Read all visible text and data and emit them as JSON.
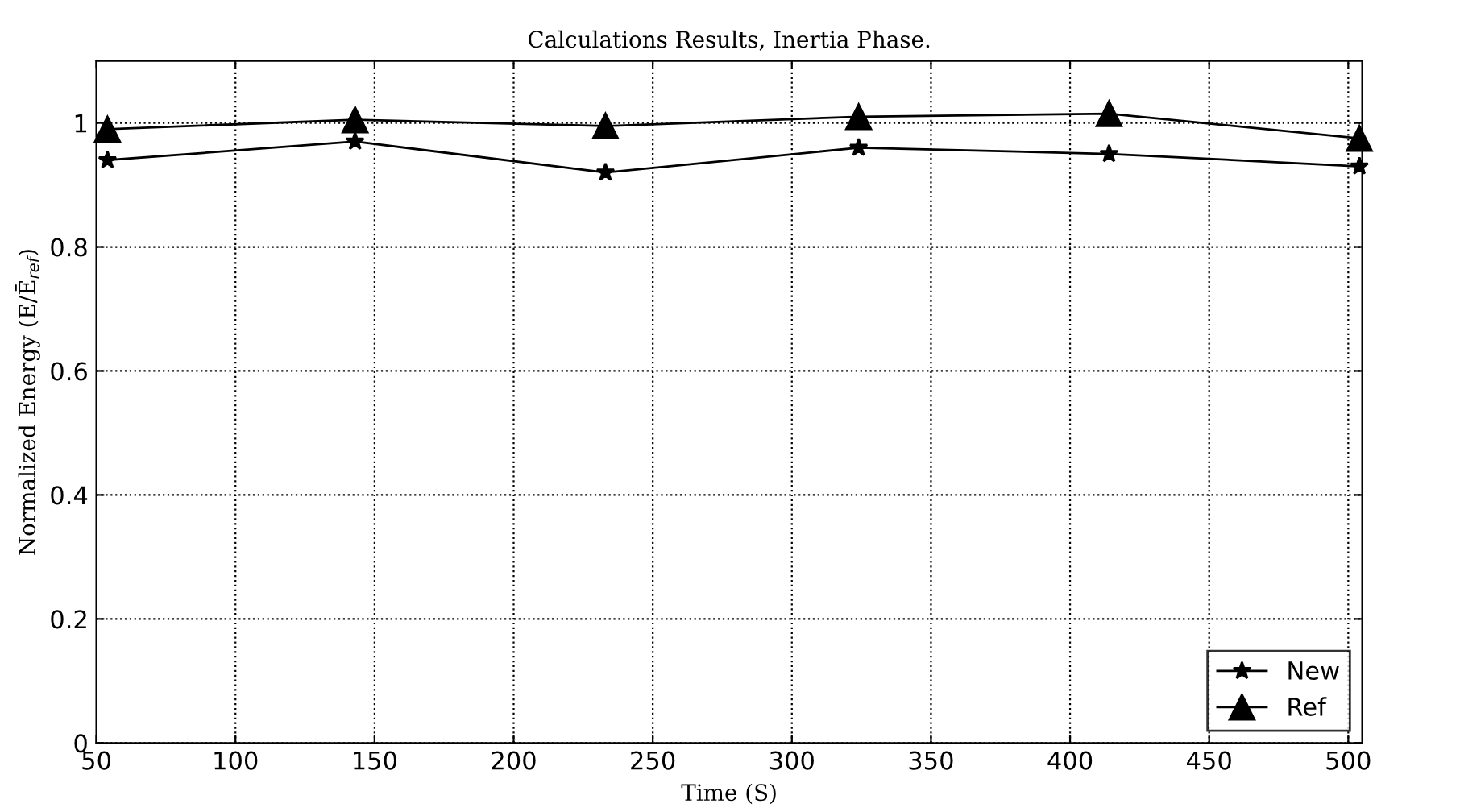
{
  "chart_data": {
    "type": "line",
    "title": "Calculations Results, Inertia Phase.",
    "xlabel": "Time (S)",
    "ylabel": "Normalized Energy (E/Ē$_{ref}$)",
    "x": [
      54,
      143,
      233,
      324,
      414,
      504
    ],
    "series": [
      {
        "name": "New",
        "color": "#000000",
        "marker": "star",
        "values": [
          0.94,
          0.97,
          0.92,
          0.96,
          0.95,
          0.93
        ]
      },
      {
        "name": "Ref",
        "color": "#000000",
        "marker": "triangle",
        "values": [
          0.99,
          1.005,
          0.995,
          1.01,
          1.015,
          0.975
        ]
      }
    ],
    "xlim": [
      50,
      505
    ],
    "ylim": [
      0,
      1.1
    ],
    "xticks": [
      50,
      100,
      150,
      200,
      250,
      300,
      350,
      400,
      450,
      500
    ],
    "yticks": [
      0,
      0.2,
      0.4,
      0.6,
      0.8,
      1
    ],
    "grid": true,
    "legend": "bottom right",
    "line_style": "solid"
  }
}
